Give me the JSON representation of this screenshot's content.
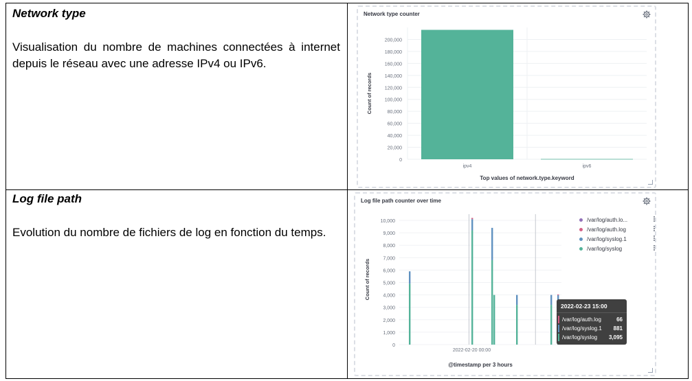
{
  "rows": [
    {
      "title": "Network type",
      "description": "Visualisation du nombre de machines connectées à internet depuis le réseau avec une adresse IPv4 ou IPv6."
    },
    {
      "title": "Log file path",
      "description": "Evolution du nombre de fichiers de log en fonction du temps."
    }
  ],
  "panels": {
    "network": {
      "title": "Network type counter",
      "icon": "gear-icon"
    },
    "logfile": {
      "title": "Log file path counter over time",
      "icon": "gear-icon"
    }
  },
  "chart_data": [
    {
      "type": "bar",
      "title": "Network type counter",
      "xlabel": "Top values of network.type.keyword",
      "ylabel": "Count of records",
      "categories": [
        "ipv4",
        "ipv6"
      ],
      "values": [
        216000,
        500
      ],
      "ylim": [
        0,
        220000
      ],
      "yticks": [
        0,
        20000,
        40000,
        60000,
        80000,
        100000,
        120000,
        140000,
        160000,
        180000,
        200000
      ],
      "ytick_labels": [
        "0",
        "20,000",
        "40,000",
        "60,000",
        "80,000",
        "100,000",
        "120,000",
        "140,000",
        "160,000",
        "180,000",
        "200,000"
      ],
      "color": "#54b399",
      "grid": true
    },
    {
      "type": "bar",
      "stacked": true,
      "title": "Log file path counter over time",
      "xlabel": "@timestamp per 3 hours",
      "ylabel": "Count of records",
      "x_tick_label": "2022-02-20 00:00",
      "ylim": [
        0,
        10500
      ],
      "yticks": [
        0,
        1000,
        2000,
        3000,
        4000,
        5000,
        6000,
        7000,
        8000,
        9000,
        10000
      ],
      "ytick_labels": [
        "0",
        "1,000",
        "2,000",
        "3,000",
        "4,000",
        "5,000",
        "6,000",
        "7,000",
        "8,000",
        "9,000",
        "10,000"
      ],
      "legend_position": "top-right",
      "series": [
        {
          "name": "/var/log/syslog",
          "color": "#54b399",
          "values": [
            4900,
            9200,
            6800,
            4000,
            3200,
            3200,
            3095
          ]
        },
        {
          "name": "/var/log/syslog.1",
          "color": "#6092c0",
          "values": [
            1000,
            900,
            2600,
            0,
            800,
            800,
            881
          ]
        },
        {
          "name": "/var/log/auth.log",
          "color": "#d36086",
          "values": [
            0,
            100,
            0,
            0,
            0,
            0,
            66
          ]
        },
        {
          "name": "/var/log/auth.lo…",
          "color": "#9170b8",
          "values": [
            0,
            0,
            0,
            0,
            0,
            0,
            0
          ]
        }
      ],
      "legend": [
        {
          "name": "/var/log/auth.lo...",
          "color": "#9170b8"
        },
        {
          "name": "/var/log/auth.log",
          "color": "#d36086"
        },
        {
          "name": "/var/log/syslog.1",
          "color": "#6092c0"
        },
        {
          "name": "/var/log/syslog",
          "color": "#54b399"
        }
      ],
      "tooltip": {
        "header": "2022-02-23 15:00",
        "rows": [
          {
            "name": "/var/log/auth.log",
            "value": "66",
            "color": "#d36086"
          },
          {
            "name": "/var/log/syslog.1",
            "value": "881",
            "color": "#6092c0"
          },
          {
            "name": "/var/log/syslog",
            "value": "3,095",
            "color": "#54b399"
          }
        ]
      }
    }
  ]
}
